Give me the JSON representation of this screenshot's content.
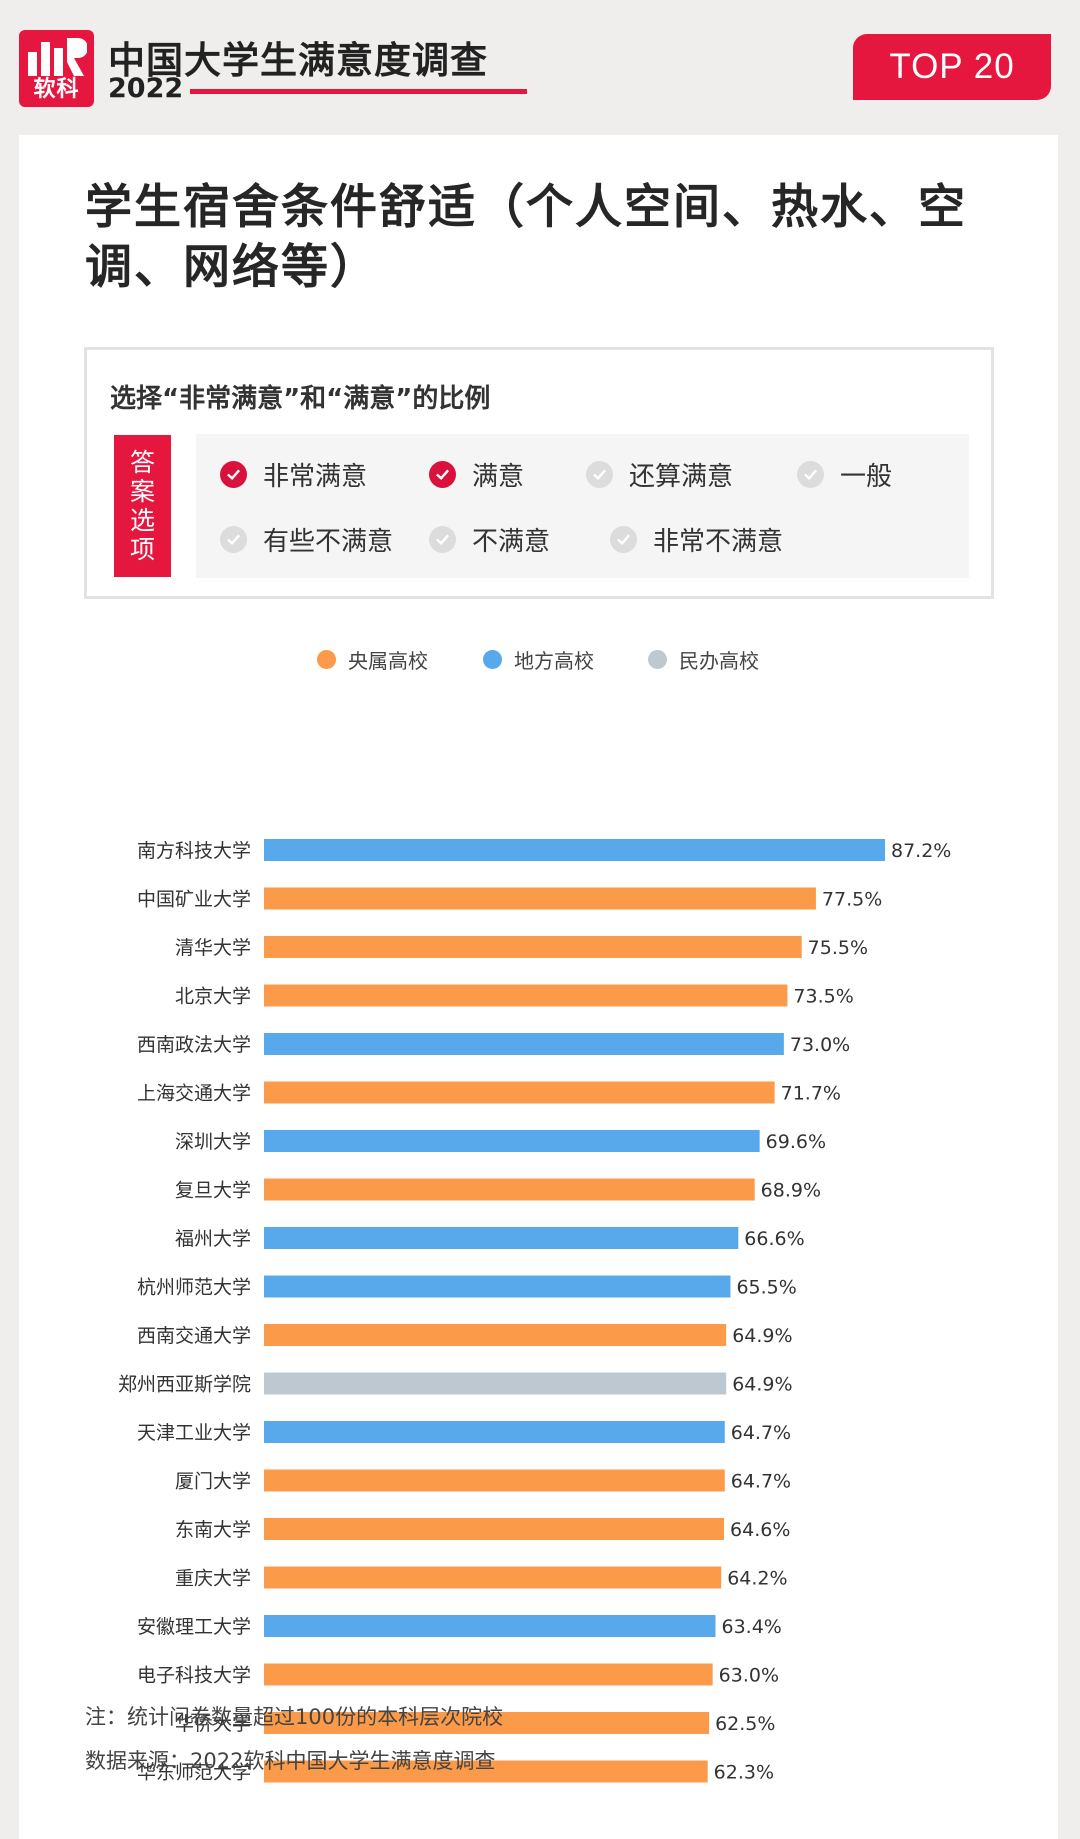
{
  "header": {
    "logo_text": "软科",
    "title": "中国大学生满意度调查",
    "year": "2022",
    "badge": "TOP 20",
    "brand_color": "#e5173f"
  },
  "main_title": "学生宿舍条件舒适（个人空间、热水、空调、网络等）",
  "answer_box": {
    "subtitle": "选择“非常满意”和“满意”的比例",
    "label": "答案选项",
    "options": [
      {
        "label": "非常满意",
        "selected": true
      },
      {
        "label": "满意",
        "selected": true
      },
      {
        "label": "还算满意",
        "selected": false
      },
      {
        "label": "一般",
        "selected": false
      },
      {
        "label": "有些不满意",
        "selected": false
      },
      {
        "label": "不满意",
        "selected": false
      },
      {
        "label": "非常不满意",
        "selected": false
      }
    ]
  },
  "legend": [
    {
      "name": "央属高校",
      "color": "#fb9a48"
    },
    {
      "name": "地方高校",
      "color": "#57a9ec"
    },
    {
      "name": "民办高校",
      "color": "#bec8d1"
    }
  ],
  "chart_data": {
    "type": "bar",
    "orientation": "horizontal",
    "grid": false,
    "legend_position": "top-center",
    "value_suffix": "%",
    "xlim": [
      0,
      100
    ],
    "categories": [
      "南方科技大学",
      "中国矿业大学",
      "清华大学",
      "北京大学",
      "西南政法大学",
      "上海交通大学",
      "深圳大学",
      "复旦大学",
      "福州大学",
      "杭州师范大学",
      "西南交通大学",
      "郑州西亚斯学院",
      "天津工业大学",
      "厦门大学",
      "东南大学",
      "重庆大学",
      "安徽理工大学",
      "电子科技大学",
      "华侨大学",
      "华东师范大学"
    ],
    "values": [
      87.2,
      77.5,
      75.5,
      73.5,
      73.0,
      71.7,
      69.6,
      68.9,
      66.6,
      65.5,
      64.9,
      64.9,
      64.7,
      64.7,
      64.6,
      64.2,
      63.4,
      63.0,
      62.5,
      62.3
    ],
    "groups": [
      "地方高校",
      "央属高校",
      "央属高校",
      "央属高校",
      "地方高校",
      "央属高校",
      "地方高校",
      "央属高校",
      "地方高校",
      "地方高校",
      "央属高校",
      "民办高校",
      "地方高校",
      "央属高校",
      "央属高校",
      "央属高校",
      "地方高校",
      "央属高校",
      "央属高校",
      "央属高校"
    ],
    "value_labels": [
      "87.2%",
      "77.5%",
      "75.5%",
      "73.5%",
      "73.0%",
      "71.7%",
      "69.6%",
      "68.9%",
      "66.6%",
      "65.5%",
      "64.9%",
      "64.9%",
      "64.7%",
      "64.7%",
      "64.6%",
      "64.2%",
      "63.4%",
      "63.0%",
      "62.5%",
      "62.3%"
    ]
  },
  "notes": {
    "note": "注：统计问卷数量超过100份的本科层次院校",
    "source": "数据来源：2022软科中国大学生满意度调查"
  }
}
